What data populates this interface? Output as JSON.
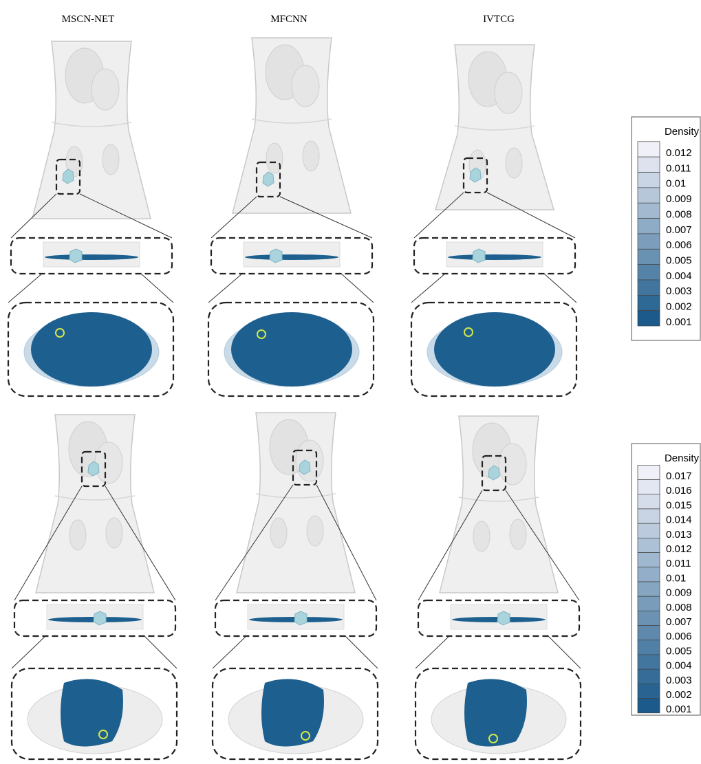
{
  "columns": [
    "MSCN-NET",
    "MFCNN",
    "IVTCG"
  ],
  "colorbars": [
    {
      "title": "Density",
      "labels": [
        "0.012",
        "0.011",
        "0.01",
        "0.009",
        "0.008",
        "0.007",
        "0.006",
        "0.005",
        "0.004",
        "0.003",
        "0.002",
        "0.001"
      ]
    },
    {
      "title": "Density",
      "labels": [
        "0.017",
        "0.016",
        "0.015",
        "0.014",
        "0.013",
        "0.012",
        "0.011",
        "0.01",
        "0.009",
        "0.008",
        "0.007",
        "0.006",
        "0.005",
        "0.004",
        "0.003",
        "0.002",
        "0.001"
      ]
    }
  ]
}
